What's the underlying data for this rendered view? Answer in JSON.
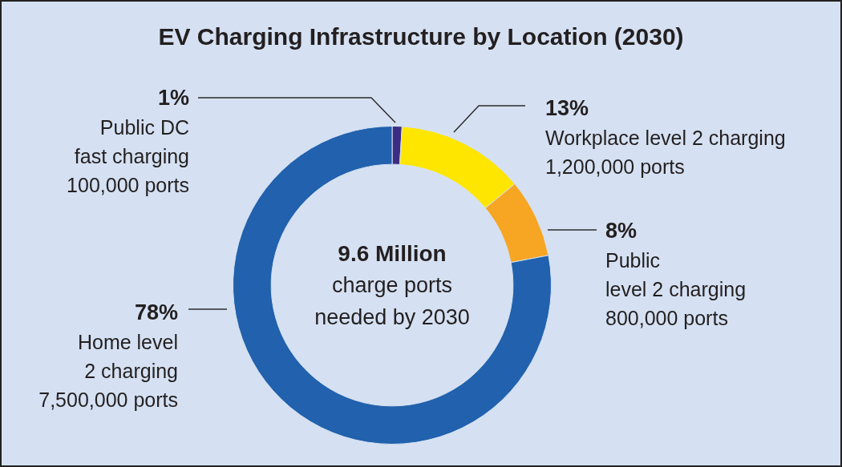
{
  "chart_data": {
    "type": "donut",
    "title": "EV Charging Infrastructure by Location (2030)",
    "categories": [
      "Public DC\nfast charging\n100,000 ports",
      "Workplace level 2 charging\n1,200,000 ports",
      "Public\nlevel 2 charging\n800,000 ports",
      "Home level\n2 charging\n7,500,000 ports"
    ],
    "values": [
      1,
      13,
      8,
      78
    ],
    "value_labels": [
      "1%",
      "13%",
      "8%",
      "78%"
    ],
    "colors": [
      "#3d2b84",
      "#ffe600",
      "#f6a623",
      "#2161ad"
    ],
    "annotations": [
      "9.6 Million",
      "charge ports\nneeded by 2030"
    ]
  }
}
